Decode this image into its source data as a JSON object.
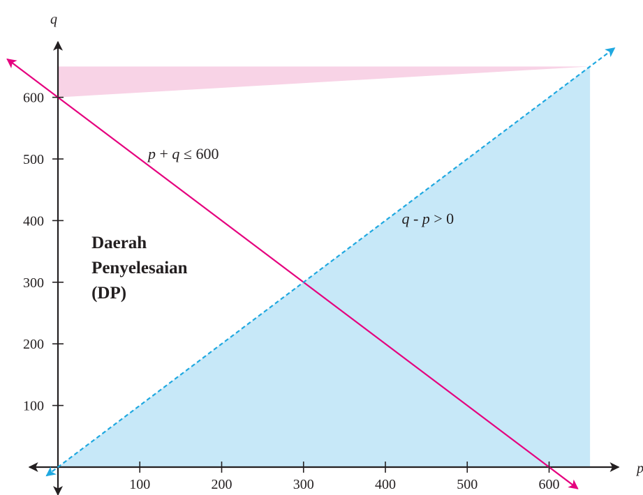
{
  "chart_data": {
    "type": "line",
    "title": "",
    "xlabel": "p",
    "ylabel": "q",
    "xlim": [
      0,
      650
    ],
    "ylim": [
      0,
      650
    ],
    "x_ticks": [
      100,
      200,
      300,
      400,
      500,
      600
    ],
    "y_ticks": [
      100,
      200,
      300,
      400,
      500,
      600
    ],
    "grid": false,
    "series": [
      {
        "x": [
          0,
          650
        ],
        "y": [
          600,
          -50
        ],
        "style": "solid",
        "color": "#e5007e"
      },
      {
        "x": [
          0,
          650
        ],
        "y": [
          0,
          650
        ],
        "style": "dashed",
        "color": "#1fa8e0"
      }
    ],
    "intersection": {
      "p": 300,
      "q": 300
    },
    "annotations": [
      {
        "segments": [
          "p",
          " + ",
          "q",
          " ≤ 600"
        ],
        "italic": [
          true,
          false,
          true,
          false
        ],
        "at": [
          110,
          500
        ]
      },
      {
        "segments": [
          "q",
          " -  ",
          "p",
          " > 0"
        ],
        "italic": [
          true,
          false,
          true,
          false
        ],
        "at": [
          420,
          395
        ]
      }
    ],
    "region_label": [
      "Daerah",
      "Penyelesaian",
      "(DP)"
    ],
    "colors": {
      "shade_above_sum": "#f8d3e6",
      "shade_below_diag": "#c7e8f8",
      "axis": "#231f20"
    }
  }
}
